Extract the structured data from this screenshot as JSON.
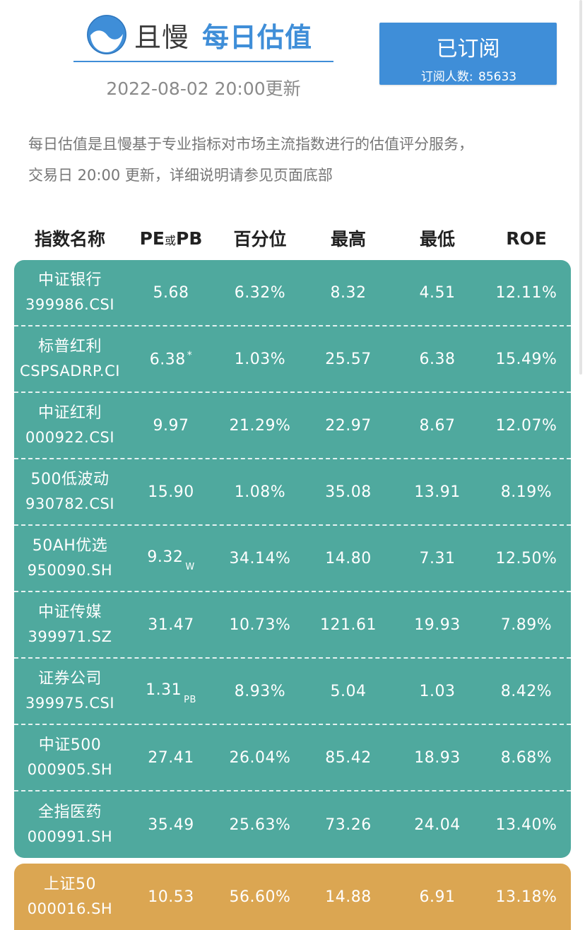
{
  "header": {
    "brand_name": "且慢",
    "product_name": "每日估值",
    "update_time": "2022-08-02 20:00更新",
    "brand_color": "#3f8ed8"
  },
  "subscribe": {
    "label": "已订阅",
    "count_label": "订阅人数:",
    "count_value": "85633",
    "color": "#3f8ed8"
  },
  "description": {
    "line1": "每日估值是且慢基于专业指标对市场主流指数进行的估值评分服务，",
    "line2": "交易日 20:00 更新，详细说明请参见页面底部"
  },
  "table": {
    "headers": {
      "name": "指数名称",
      "pe_main": "PE",
      "pe_mid": "或",
      "pe_end": "PB",
      "percentile": "百分位",
      "high": "最高",
      "low": "最低",
      "roe": "ROE"
    },
    "green_color": "#4fa99e",
    "orange_color": "#dba652",
    "green_rows": [
      {
        "name": "中证银行",
        "code": "399986.CSI",
        "pe": "5.68",
        "mark": "",
        "pct": "6.32%",
        "high": "8.32",
        "low": "4.51",
        "roe": "12.11%"
      },
      {
        "name": "标普红利",
        "code": "CSPSADRP.CI",
        "pe": "6.38",
        "mark": "*",
        "pct": "1.03%",
        "high": "25.57",
        "low": "6.38",
        "roe": "15.49%"
      },
      {
        "name": "中证红利",
        "code": "000922.CSI",
        "pe": "9.97",
        "mark": "",
        "pct": "21.29%",
        "high": "22.97",
        "low": "8.67",
        "roe": "12.07%"
      },
      {
        "name": "500低波动",
        "code": "930782.CSI",
        "pe": "15.90",
        "mark": "",
        "pct": "1.08%",
        "high": "35.08",
        "low": "13.91",
        "roe": "8.19%"
      },
      {
        "name": "50AH优选",
        "code": "950090.SH",
        "pe": "9.32",
        "mark": "W",
        "pct": "34.14%",
        "high": "14.80",
        "low": "7.31",
        "roe": "12.50%"
      },
      {
        "name": "中证传媒",
        "code": "399971.SZ",
        "pe": "31.47",
        "mark": "",
        "pct": "10.73%",
        "high": "121.61",
        "low": "19.93",
        "roe": "7.89%"
      },
      {
        "name": "证券公司",
        "code": "399975.CSI",
        "pe": "1.31",
        "mark": "PB",
        "pct": "8.93%",
        "high": "5.04",
        "low": "1.03",
        "roe": "8.42%"
      },
      {
        "name": "中证500",
        "code": "000905.SH",
        "pe": "27.41",
        "mark": "",
        "pct": "26.04%",
        "high": "85.42",
        "low": "18.93",
        "roe": "8.68%"
      },
      {
        "name": "全指医药",
        "code": "000991.SH",
        "pe": "35.49",
        "mark": "",
        "pct": "25.63%",
        "high": "73.26",
        "low": "24.04",
        "roe": "13.40%"
      }
    ],
    "orange_rows": [
      {
        "name": "上证50",
        "code": "000016.SH",
        "pe": "10.53",
        "mark": "",
        "pct": "56.60%",
        "high": "14.88",
        "low": "6.91",
        "roe": "13.18%"
      }
    ]
  }
}
